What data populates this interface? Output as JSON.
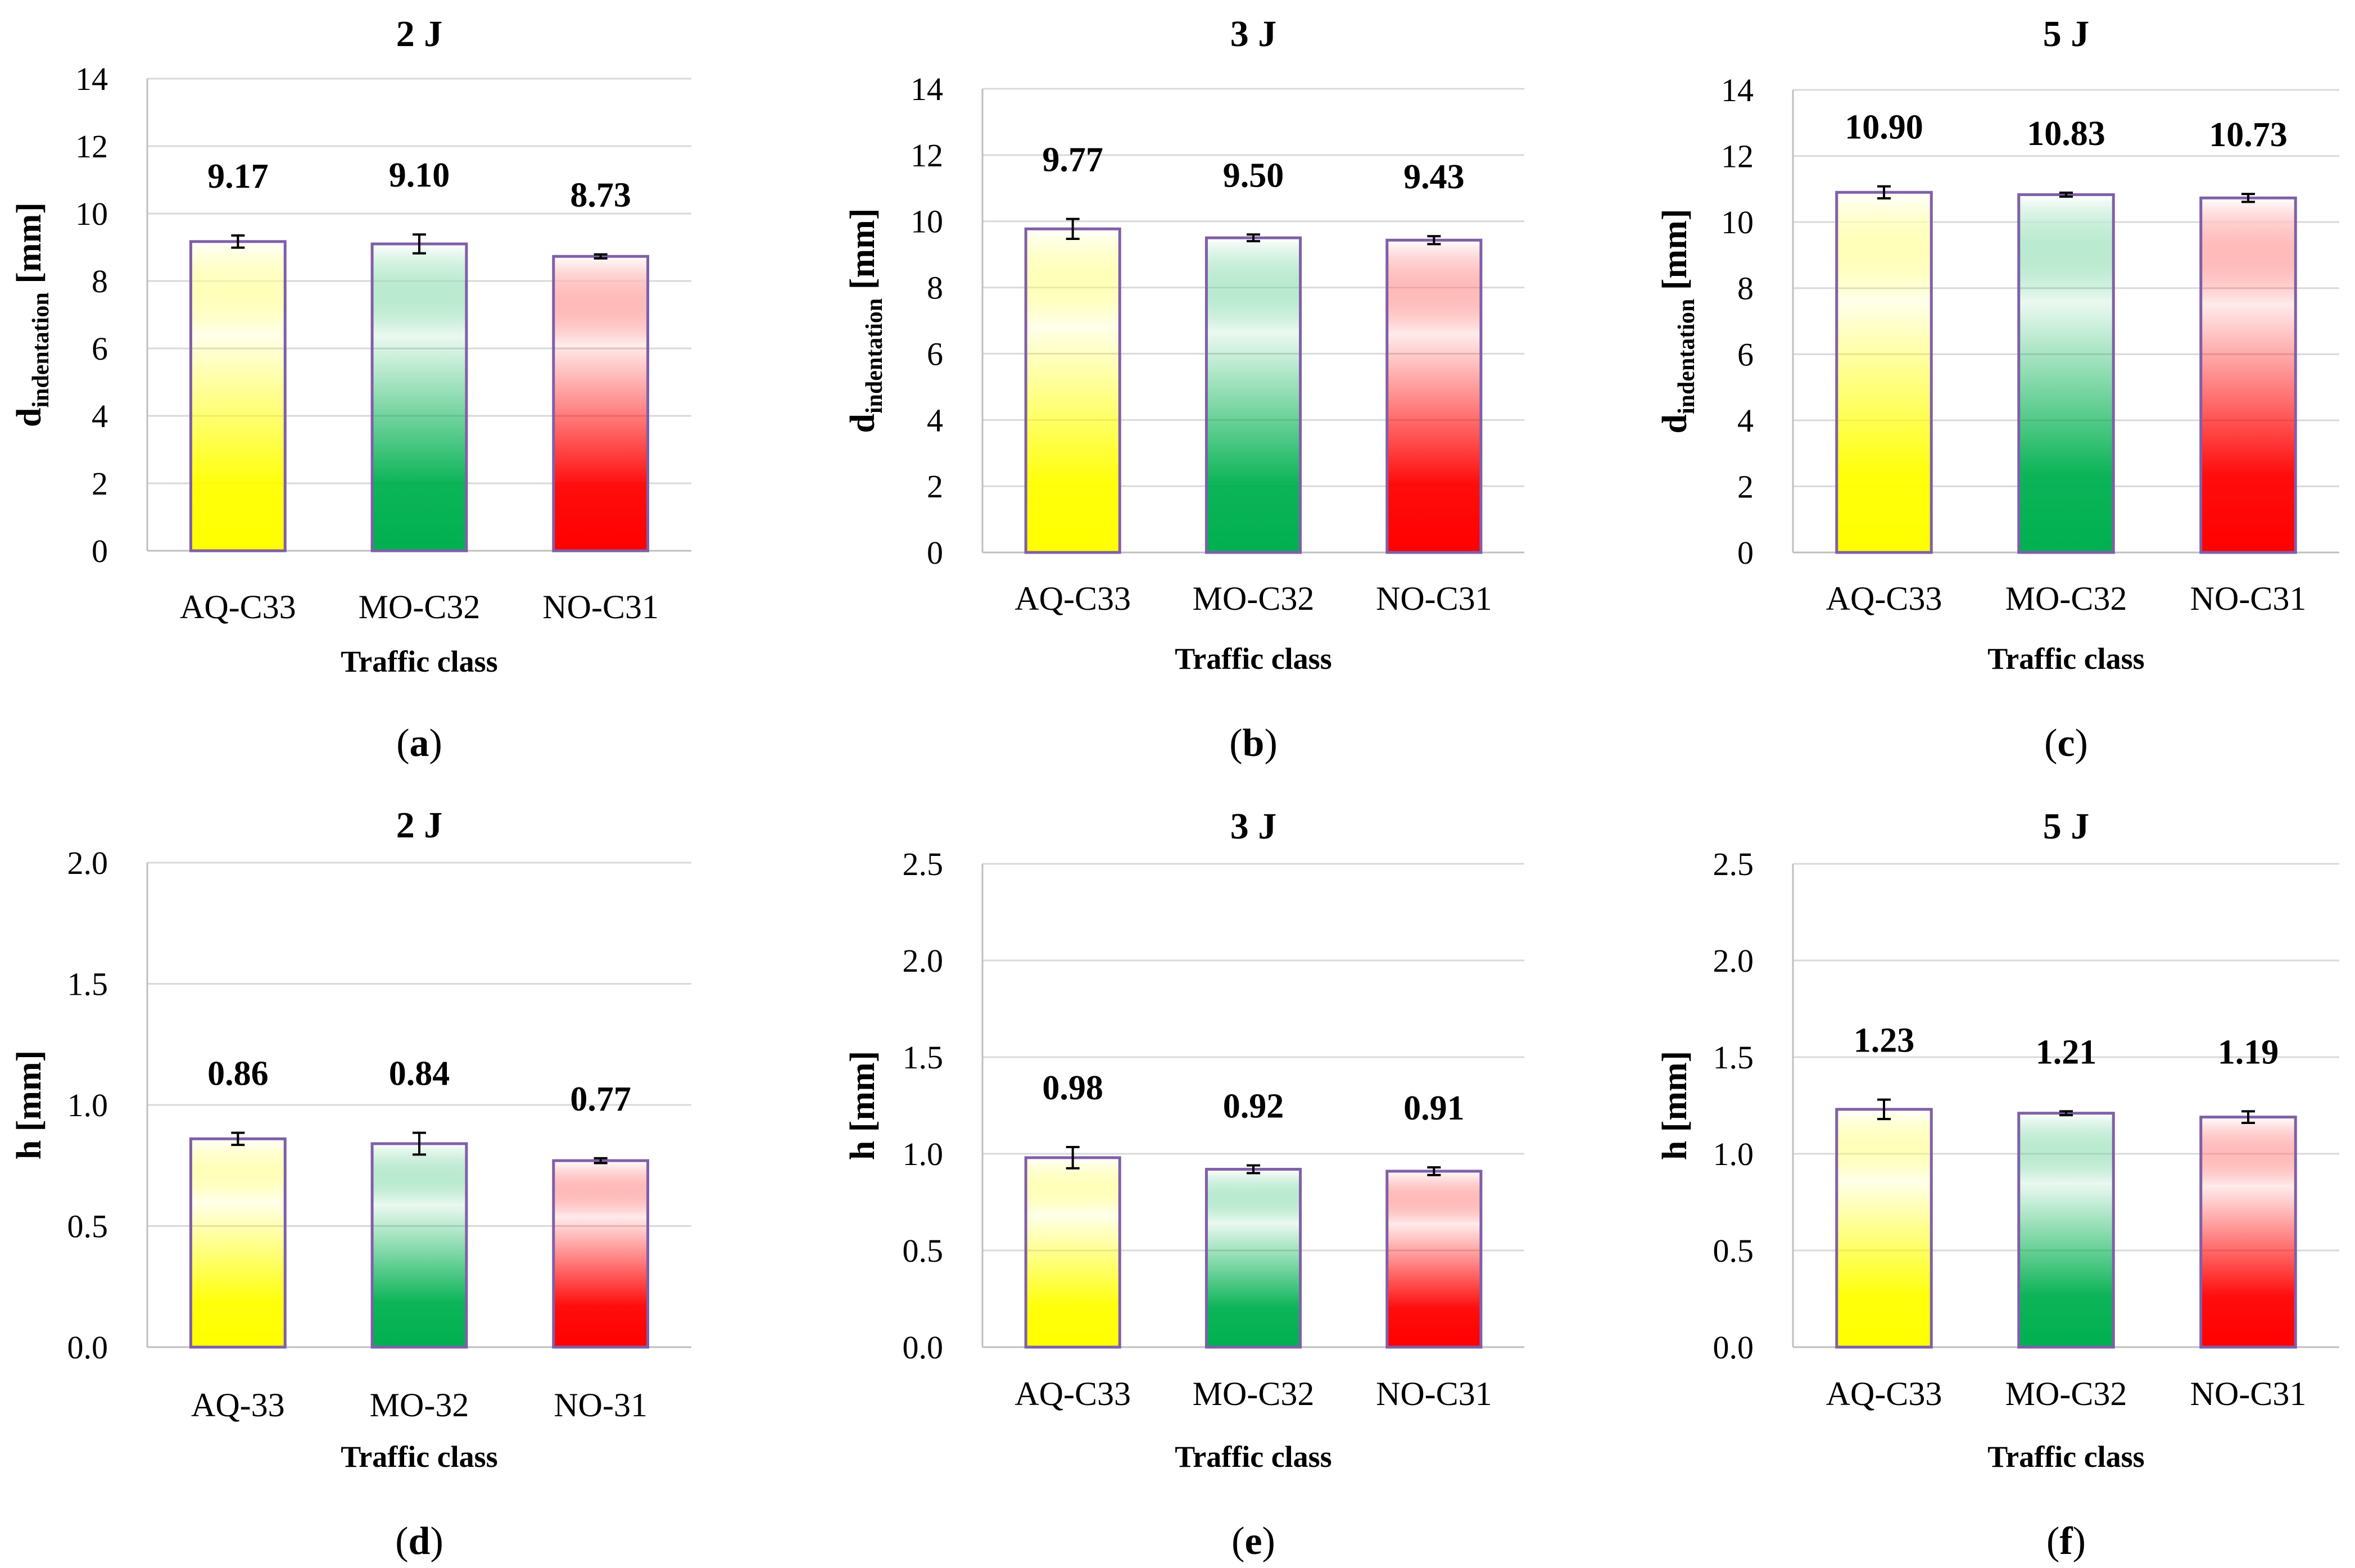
{
  "chart_data": [
    {
      "type": "bar",
      "panel": "a",
      "title": "2 J",
      "xlabel": "Traffic class",
      "ylabel": "d",
      "ylabel_sub": "indentation",
      "ylabel_unit": "[mm]",
      "categories": [
        "AQ-C33",
        "MO-C32",
        "NO-C31"
      ],
      "values": [
        9.17,
        9.1,
        8.73
      ],
      "value_labels": [
        "9.17",
        "9.10",
        "8.73"
      ],
      "errors": [
        0.18,
        0.28,
        0.06
      ],
      "colors": [
        "#ffff00",
        "#00b050",
        "#ff0000"
      ],
      "ylim": [
        0,
        14
      ],
      "yticks": [
        0,
        2,
        4,
        6,
        8,
        10,
        12,
        14
      ],
      "ytick_labels": [
        "0",
        "2",
        "4",
        "6",
        "8",
        "10",
        "12",
        "14"
      ]
    },
    {
      "type": "bar",
      "panel": "b",
      "title": "3 J",
      "xlabel": "Traffic class",
      "ylabel": "d",
      "ylabel_sub": "indentation",
      "ylabel_unit": "[mm]",
      "categories": [
        "AQ-C33",
        "MO-C32",
        "NO-C31"
      ],
      "values": [
        9.77,
        9.5,
        9.43
      ],
      "value_labels": [
        "9.77",
        "9.50",
        "9.43"
      ],
      "errors": [
        0.3,
        0.1,
        0.12
      ],
      "colors": [
        "#ffff00",
        "#00b050",
        "#ff0000"
      ],
      "ylim": [
        0,
        14
      ],
      "yticks": [
        0,
        2,
        4,
        6,
        8,
        10,
        12,
        14
      ],
      "ytick_labels": [
        "0",
        "2",
        "4",
        "6",
        "8",
        "10",
        "12",
        "14"
      ]
    },
    {
      "type": "bar",
      "panel": "c",
      "title": "5 J",
      "xlabel": "Traffic class",
      "ylabel": "d",
      "ylabel_sub": "indentation",
      "ylabel_unit": "[mm]",
      "categories": [
        "AQ-C33",
        "MO-C32",
        "NO-C31"
      ],
      "values": [
        10.9,
        10.83,
        10.73
      ],
      "value_labels": [
        "10.90",
        "10.83",
        "10.73"
      ],
      "errors": [
        0.18,
        0.06,
        0.12
      ],
      "colors": [
        "#ffff00",
        "#00b050",
        "#ff0000"
      ],
      "ylim": [
        0,
        14
      ],
      "yticks": [
        0,
        2,
        4,
        6,
        8,
        10,
        12,
        14
      ],
      "ytick_labels": [
        "0",
        "2",
        "4",
        "6",
        "8",
        "10",
        "12",
        "14"
      ]
    },
    {
      "type": "bar",
      "panel": "d",
      "title": "2 J",
      "xlabel": "Traffic class",
      "ylabel": "h",
      "ylabel_sub": "",
      "ylabel_unit": "[mm]",
      "categories": [
        "AQ-33",
        "MO-32",
        "NO-31"
      ],
      "values": [
        0.86,
        0.84,
        0.77
      ],
      "value_labels": [
        "0.86",
        "0.84",
        "0.77"
      ],
      "errors": [
        0.025,
        0.045,
        0.01
      ],
      "colors": [
        "#ffff00",
        "#00b050",
        "#ff0000"
      ],
      "ylim": [
        0,
        2.0
      ],
      "yticks": [
        0,
        0.5,
        1.0,
        1.5,
        2.0
      ],
      "ytick_labels": [
        "0.0",
        "0.5",
        "1.0",
        "1.5",
        "2.0"
      ]
    },
    {
      "type": "bar",
      "panel": "e",
      "title": "3 J",
      "xlabel": "Traffic class",
      "ylabel": "h",
      "ylabel_sub": "",
      "ylabel_unit": "[mm]",
      "categories": [
        "AQ-C33",
        "MO-C32",
        "NO-C31"
      ],
      "values": [
        0.98,
        0.92,
        0.91
      ],
      "value_labels": [
        "0.98",
        "0.92",
        "0.91"
      ],
      "errors": [
        0.055,
        0.02,
        0.02
      ],
      "colors": [
        "#ffff00",
        "#00b050",
        "#ff0000"
      ],
      "ylim": [
        0,
        2.5
      ],
      "yticks": [
        0,
        0.5,
        1.0,
        1.5,
        2.0,
        2.5
      ],
      "ytick_labels": [
        "0.0",
        "0.5",
        "1.0",
        "1.5",
        "2.0",
        "2.5"
      ]
    },
    {
      "type": "bar",
      "panel": "f",
      "title": "5 J",
      "xlabel": "Traffic class",
      "ylabel": "h",
      "ylabel_sub": "",
      "ylabel_unit": "[mm]",
      "categories": [
        "AQ-C33",
        "MO-C32",
        "NO-C31"
      ],
      "values": [
        1.23,
        1.21,
        1.19
      ],
      "value_labels": [
        "1.23",
        "1.21",
        "1.19"
      ],
      "errors": [
        0.05,
        0.01,
        0.03
      ],
      "colors": [
        "#ffff00",
        "#00b050",
        "#ff0000"
      ],
      "ylim": [
        0,
        2.5
      ],
      "yticks": [
        0,
        0.5,
        1.0,
        1.5,
        2.0,
        2.5
      ],
      "ytick_labels": [
        "0.0",
        "0.5",
        "1.0",
        "1.5",
        "2.0",
        "2.5"
      ]
    }
  ]
}
